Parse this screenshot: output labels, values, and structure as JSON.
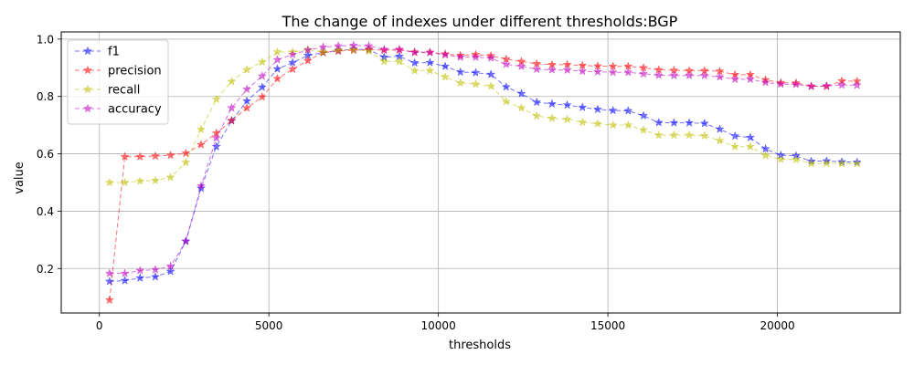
{
  "chart_data": {
    "type": "line",
    "title": "The change of indexes under different thresholds:BGP",
    "xlabel": "thresholds",
    "ylabel": "value",
    "xlim": [
      -1125,
      23625
    ],
    "ylim": [
      0.045,
      1.025
    ],
    "xticks": [
      0,
      5000,
      10000,
      15000,
      20000
    ],
    "xtick_labels": [
      "0",
      "5000",
      "10000",
      "15000",
      "20000"
    ],
    "yticks": [
      0.2,
      0.4,
      0.6,
      0.8,
      1.0
    ],
    "ytick_labels": [
      "0.2",
      "0.4",
      "0.6",
      "0.8",
      "1.0"
    ],
    "grid": true,
    "legend_position": "top-left",
    "marker": "star",
    "line_style": "dashed",
    "x": [
      300,
      750,
      1200,
      1650,
      2100,
      2550,
      3000,
      3450,
      3900,
      4350,
      4800,
      5250,
      5700,
      6150,
      6600,
      7050,
      7500,
      7950,
      8400,
      8850,
      9300,
      9750,
      10200,
      10650,
      11100,
      11550,
      12000,
      12450,
      12900,
      13350,
      13800,
      14250,
      14700,
      15150,
      15600,
      16050,
      16500,
      16950,
      17400,
      17850,
      18300,
      18750,
      19200,
      19650,
      20100,
      20550,
      21000,
      21450,
      21900,
      22350
    ],
    "series": [
      {
        "name": "f1",
        "color": "#0000ff",
        "values": [
          0.155,
          0.158,
          0.167,
          0.171,
          0.19,
          0.295,
          0.48,
          0.625,
          0.715,
          0.784,
          0.832,
          0.896,
          0.918,
          0.943,
          0.953,
          0.96,
          0.965,
          0.963,
          0.937,
          0.94,
          0.917,
          0.918,
          0.905,
          0.885,
          0.883,
          0.877,
          0.833,
          0.81,
          0.78,
          0.774,
          0.77,
          0.762,
          0.755,
          0.751,
          0.75,
          0.733,
          0.709,
          0.708,
          0.708,
          0.706,
          0.686,
          0.662,
          0.657,
          0.617,
          0.595,
          0.593,
          0.574,
          0.575,
          0.572,
          0.571
        ]
      },
      {
        "name": "precision",
        "color": "#ff0000",
        "values": [
          0.09,
          0.59,
          0.59,
          0.592,
          0.595,
          0.602,
          0.632,
          0.672,
          0.716,
          0.76,
          0.798,
          0.862,
          0.895,
          0.925,
          0.953,
          0.958,
          0.961,
          0.964,
          0.961,
          0.962,
          0.955,
          0.954,
          0.948,
          0.943,
          0.946,
          0.942,
          0.93,
          0.922,
          0.914,
          0.911,
          0.911,
          0.908,
          0.906,
          0.905,
          0.905,
          0.9,
          0.893,
          0.891,
          0.89,
          0.89,
          0.888,
          0.876,
          0.876,
          0.858,
          0.848,
          0.847,
          0.836,
          0.835,
          0.854,
          0.853
        ]
      },
      {
        "name": "recall",
        "color": "#bfbf00",
        "values": [
          0.5,
          0.5,
          0.505,
          0.507,
          0.518,
          0.57,
          0.685,
          0.79,
          0.852,
          0.893,
          0.92,
          0.955,
          0.955,
          0.963,
          0.955,
          0.963,
          0.963,
          0.958,
          0.922,
          0.922,
          0.89,
          0.89,
          0.868,
          0.847,
          0.843,
          0.836,
          0.782,
          0.76,
          0.732,
          0.724,
          0.72,
          0.71,
          0.705,
          0.7,
          0.7,
          0.683,
          0.665,
          0.665,
          0.665,
          0.663,
          0.646,
          0.625,
          0.625,
          0.594,
          0.581,
          0.58,
          0.566,
          0.567,
          0.566,
          0.566
        ]
      },
      {
        "name": "accuracy",
        "color": "#bf00bf",
        "values": [
          0.183,
          0.183,
          0.193,
          0.196,
          0.208,
          0.295,
          0.488,
          0.655,
          0.76,
          0.825,
          0.871,
          0.928,
          0.946,
          0.962,
          0.972,
          0.976,
          0.978,
          0.976,
          0.964,
          0.964,
          0.953,
          0.953,
          0.945,
          0.937,
          0.937,
          0.934,
          0.912,
          0.905,
          0.895,
          0.893,
          0.892,
          0.888,
          0.886,
          0.884,
          0.884,
          0.879,
          0.874,
          0.873,
          0.873,
          0.873,
          0.868,
          0.86,
          0.86,
          0.849,
          0.843,
          0.842,
          0.835,
          0.837,
          0.84,
          0.839
        ]
      }
    ]
  }
}
